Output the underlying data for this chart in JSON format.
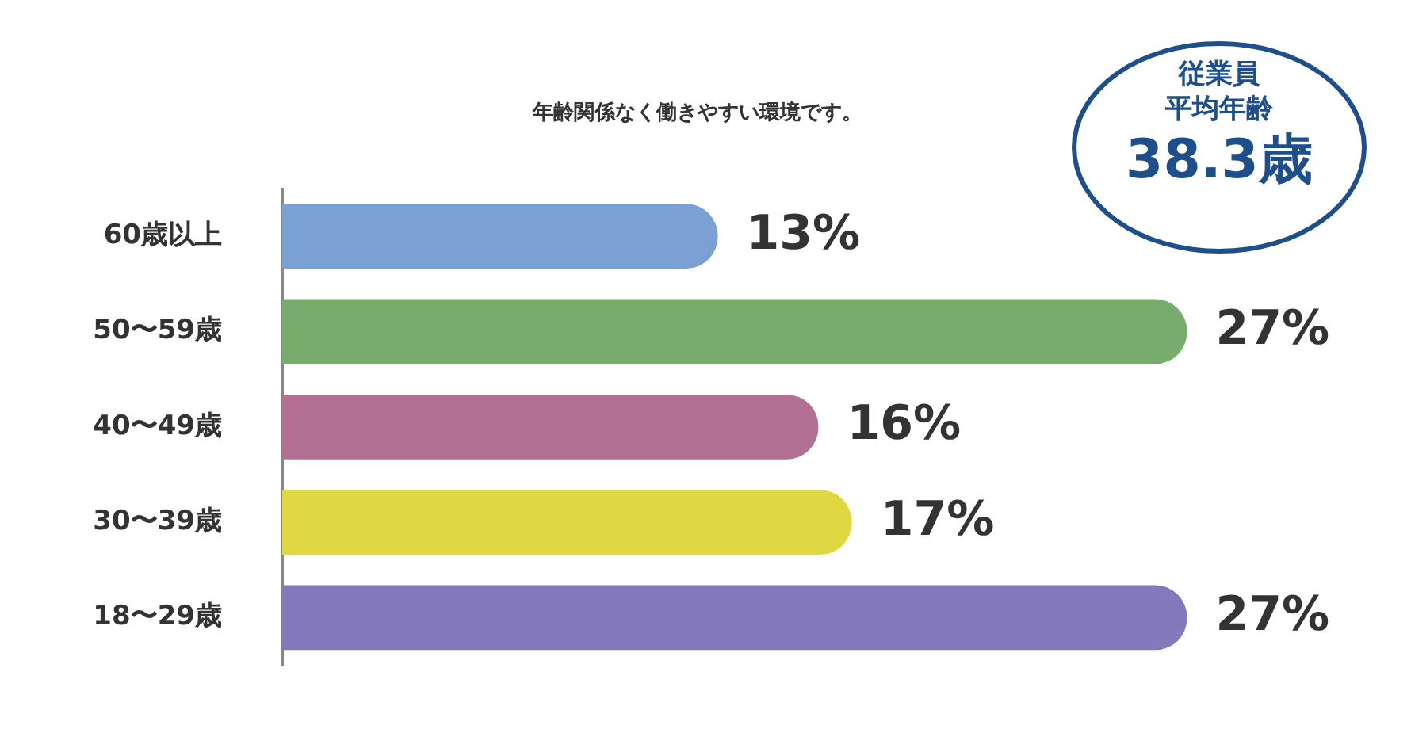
{
  "chart_data": {
    "type": "bar",
    "orientation": "horizontal",
    "title": "年齢関係なく働きやすい環境です。",
    "categories": [
      "60歳以上",
      "50〜59歳",
      "40〜49歳",
      "30〜39歳",
      "18〜29歳"
    ],
    "values": [
      13,
      27,
      16,
      17,
      27
    ],
    "value_labels": [
      "13%",
      "27%",
      "16%",
      "17%",
      "27%"
    ],
    "colors": [
      "#7ba0d4",
      "#78ab6e",
      "#b37095",
      "#e0d843",
      "#8479bc"
    ],
    "legend": false,
    "annotations": [
      "従業員",
      "平均年齢",
      "38.3歳"
    ]
  }
}
